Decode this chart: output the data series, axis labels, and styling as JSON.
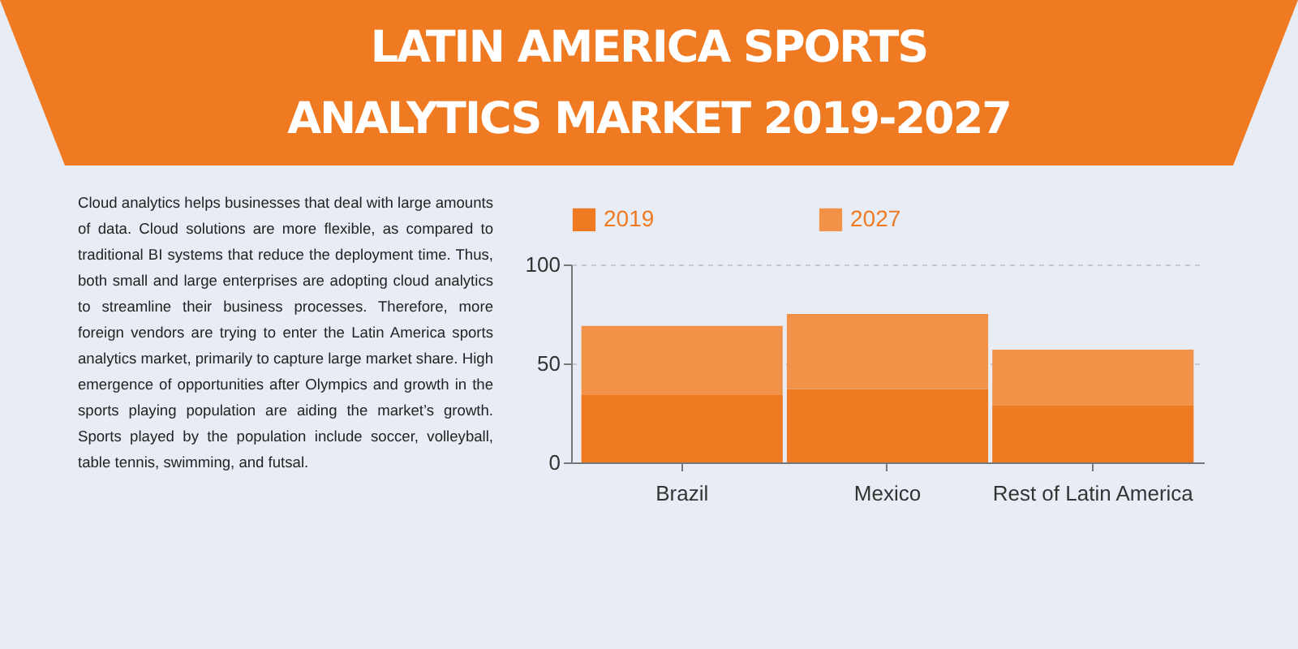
{
  "chart_data": {
    "type": "bar",
    "title": "LATIN AMERICA SPORTS ANALYTICS MARKET 2019-2027",
    "annotations": [
      "Cloud analytics helps businesses that deal with large amounts of data. Cloud solutions are more flexible, as compared to traditional BI systems that reduce the deployment time. Thus, both small and large enterprises are adopting cloud analytics to streamline their business processes. Therefore, more foreign vendors are trying to enter the Latin America sports analytics market, primarily to capture large market share. High emergence of opportunities after Olympics and growth in the sports playing population are aiding the market’s growth. Sports played by the population include soccer, volleyball, table tennis, swimming, and futsal."
    ],
    "categories": [
      "Brazil",
      "Mexico",
      "Rest of Latin America"
    ],
    "series": [
      {
        "name": "2019",
        "color": "#f07a22",
        "values": [
          34,
          37,
          29
        ]
      },
      {
        "name": "2027",
        "color": "#f29248",
        "values": [
          35,
          38,
          28
        ]
      }
    ],
    "stacked": true,
    "ylim": [
      0,
      100
    ],
    "yticks": [
      0,
      50,
      100
    ],
    "grid": "y",
    "legend": "top"
  }
}
